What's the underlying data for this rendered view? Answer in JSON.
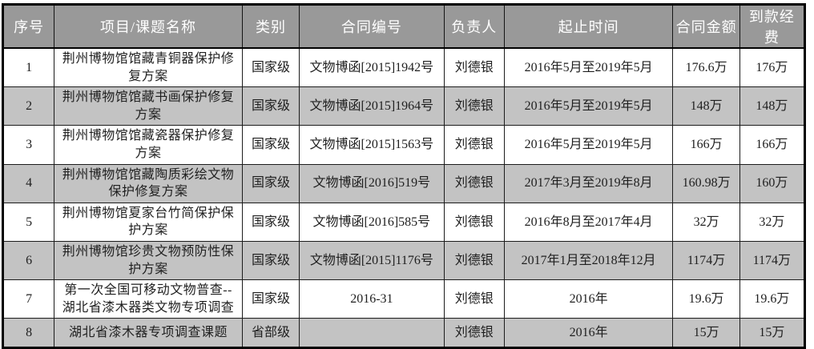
{
  "table": {
    "columns": [
      {
        "key": "index",
        "label": "序号"
      },
      {
        "key": "name",
        "label": "项目/课题名称"
      },
      {
        "key": "category",
        "label": "类别"
      },
      {
        "key": "contract_no",
        "label": "合同编号"
      },
      {
        "key": "leader",
        "label": "负责人"
      },
      {
        "key": "period",
        "label": "起止时间"
      },
      {
        "key": "contract_amount",
        "label": "合同金额"
      },
      {
        "key": "received_funds",
        "label": "到款经费"
      }
    ],
    "rows": [
      {
        "index": "1",
        "name": "荆州博物馆馆藏青铜器保护修复方案",
        "category": "国家级",
        "contract_no": "文物博函[2015]1942号",
        "leader": "刘德银",
        "period": "2016年5月至2019年5月",
        "contract_amount": "176.6万",
        "received_funds": "176万"
      },
      {
        "index": "2",
        "name": "荆州博物馆馆藏书画保护修复方案",
        "category": "国家级",
        "contract_no": "文物博函[2015]1964号",
        "leader": "刘德银",
        "period": "2016年5月至2019年5月",
        "contract_amount": "148万",
        "received_funds": "148万"
      },
      {
        "index": "3",
        "name": "荆州博物馆馆藏瓷器保护修复方案",
        "category": "国家级",
        "contract_no": "文物博函[2015]1563号",
        "leader": "刘德银",
        "period": "2016年5月至2019年5月",
        "contract_amount": "166万",
        "received_funds": "166万"
      },
      {
        "index": "4",
        "name": "荆州博物馆馆藏陶质彩绘文物保护修复方案",
        "category": "国家级",
        "contract_no": "文物博函[2016]519号",
        "leader": "刘德银",
        "period": "2017年3月至2019年8月",
        "contract_amount": "160.98万",
        "received_funds": "160万"
      },
      {
        "index": "5",
        "name": "荆州博物馆夏家台竹简保护保护方案",
        "category": "国家级",
        "contract_no": "文物博函[2016]585号",
        "leader": "刘德银",
        "period": "2016年8月至2017年4月",
        "contract_amount": "32万",
        "received_funds": "32万"
      },
      {
        "index": "6",
        "name": "荆州博物馆珍贵文物预防性保护方案",
        "category": "国家级",
        "contract_no": "文物博函[2015]1176号",
        "leader": "刘德银",
        "period": "2017年1月至2018年12月",
        "contract_amount": "1174万",
        "received_funds": "1174万"
      },
      {
        "index": "7",
        "name": "第一次全国可移动文物普查--湖北省漆木器类文物专项调查",
        "category": "国家级",
        "contract_no": "2016-31",
        "leader": "刘德银",
        "period": "2016年",
        "contract_amount": "19.6万",
        "received_funds": "19.6万"
      },
      {
        "index": "8",
        "name": "湖北省漆木器专项调查课题",
        "category": "省部级",
        "contract_no": "",
        "leader": "刘德银",
        "period": "2016年",
        "contract_amount": "15万",
        "received_funds": "15万"
      }
    ],
    "colors": {
      "header_bg": "#999999",
      "header_text": "#ffffff",
      "even_row_bg": "#c3c3c3",
      "odd_row_bg": "#ffffff",
      "outer_border": "#000000",
      "cell_border": "#1c1c1c",
      "body_text": "#1f1f1f"
    }
  }
}
